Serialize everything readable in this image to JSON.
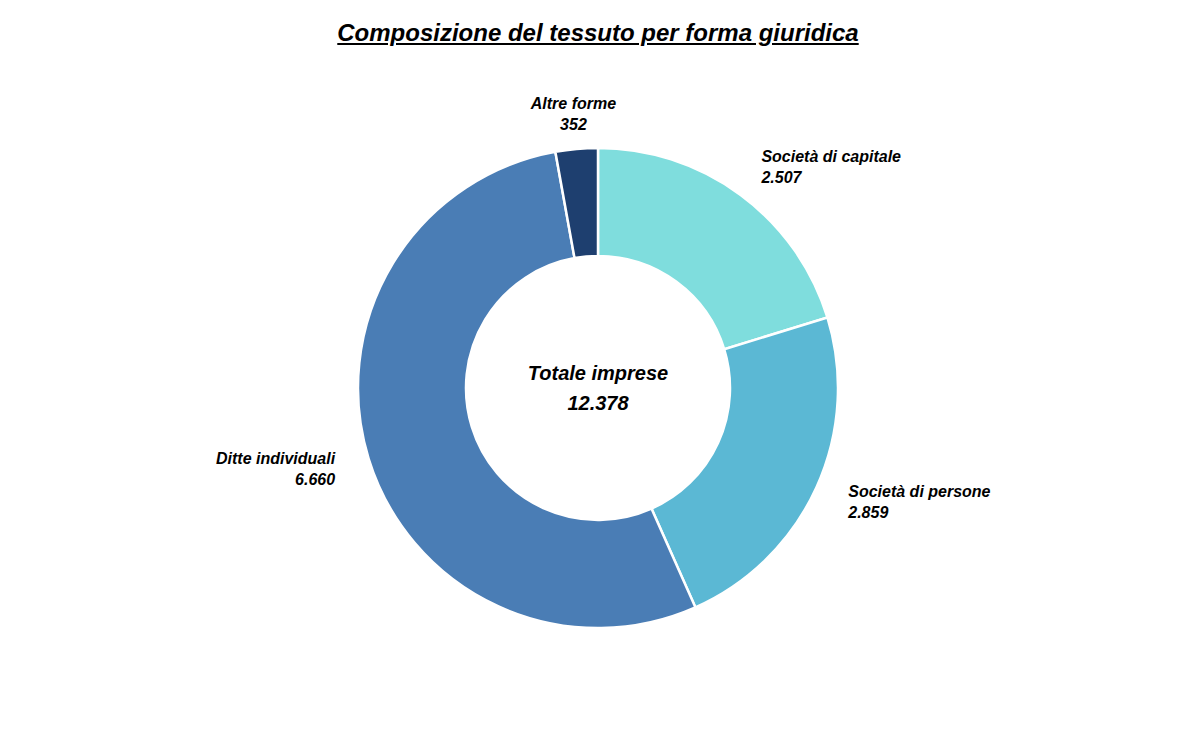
{
  "chart_data": {
    "type": "pie",
    "title": "Composizione del tessuto per forma giuridica",
    "categories": [
      "Società di capitale",
      "Società di persone",
      "Ditte individuali",
      "Altre forme"
    ],
    "values": [
      2507,
      2859,
      6660,
      352
    ],
    "value_labels": [
      "2.507",
      "2.859",
      "6.660",
      "352"
    ],
    "colors": [
      "#7FDDDD",
      "#5BB8D4",
      "#4A7DB5",
      "#1E3F6F"
    ],
    "annotations": [
      "Totale imprese",
      "12.378"
    ],
    "data_labels": true
  }
}
